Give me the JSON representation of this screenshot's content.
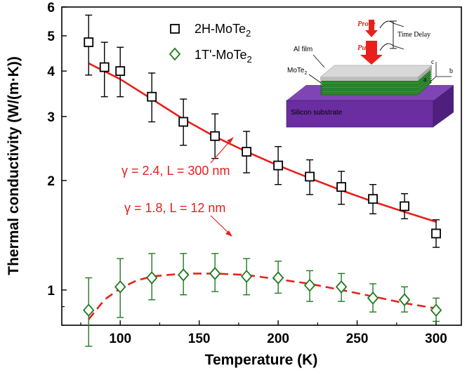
{
  "chart_data": {
    "type": "scatter",
    "xlabel": "Temperature (K)",
    "ylabel": "Thermal conductivity (W/(m·K))",
    "xlim": [
      63,
      316
    ],
    "ylim": [
      0.8,
      6
    ],
    "yscale": "log",
    "xticks": [
      100,
      150,
      200,
      250,
      300
    ],
    "xtick_labels": [
      "100",
      "150",
      "200",
      "250",
      "300"
    ],
    "yticks": [
      1,
      2,
      3,
      4,
      5,
      6
    ],
    "ytick_labels": [
      "1",
      "2",
      "3",
      "4",
      "5",
      "6"
    ],
    "series": [
      {
        "name": "2H-MoTe2",
        "label_main": "2H-MoTe",
        "label_sub": "2",
        "marker": "square",
        "color": "#000000",
        "x": [
          80,
          90,
          100,
          120,
          140,
          160,
          180,
          200,
          220,
          240,
          260,
          280,
          300
        ],
        "y": [
          4.8,
          4.1,
          4.0,
          3.4,
          2.9,
          2.65,
          2.4,
          2.2,
          2.05,
          1.92,
          1.78,
          1.7,
          1.43
        ],
        "yerr_low": [
          0.9,
          0.7,
          0.6,
          0.5,
          0.4,
          0.35,
          0.3,
          0.25,
          0.22,
          0.2,
          0.16,
          0.13,
          0.12
        ],
        "yerr_high": [
          0.9,
          0.7,
          0.65,
          0.55,
          0.45,
          0.4,
          0.33,
          0.28,
          0.23,
          0.2,
          0.17,
          0.14,
          0.13
        ]
      },
      {
        "name": "1T'-MoTe2",
        "label_main": "1T'-MoTe",
        "label_sub": "2",
        "marker": "diamond",
        "color": "#1e7a1e",
        "x": [
          80,
          100,
          120,
          140,
          160,
          180,
          200,
          220,
          240,
          260,
          280,
          300
        ],
        "y": [
          0.88,
          1.02,
          1.08,
          1.1,
          1.11,
          1.09,
          1.08,
          1.03,
          1.02,
          0.95,
          0.94,
          0.88
        ],
        "yerr_low": [
          0.18,
          0.18,
          0.14,
          0.13,
          0.12,
          0.12,
          0.1,
          0.1,
          0.09,
          0.08,
          0.07,
          0.06
        ],
        "yerr_high": [
          0.2,
          0.2,
          0.18,
          0.16,
          0.15,
          0.13,
          0.12,
          0.1,
          0.09,
          0.09,
          0.08,
          0.07
        ]
      }
    ],
    "fits": [
      {
        "name": "gamma-2.4-fit",
        "style": "solid",
        "color": "#e8201c",
        "x": [
          80,
          100,
          120,
          140,
          160,
          180,
          200,
          220,
          240,
          260,
          280,
          300
        ],
        "y": [
          4.2,
          3.8,
          3.35,
          2.95,
          2.64,
          2.4,
          2.2,
          2.03,
          1.88,
          1.75,
          1.64,
          1.54
        ]
      },
      {
        "name": "gamma-1.8-fit",
        "style": "dashed",
        "color": "#e8201c",
        "x": [
          80,
          90,
          100,
          110,
          120,
          140,
          160,
          180,
          200,
          220,
          240,
          260,
          280,
          300
        ],
        "y": [
          0.83,
          0.94,
          1.01,
          1.06,
          1.09,
          1.11,
          1.11,
          1.1,
          1.07,
          1.04,
          1.0,
          0.96,
          0.92,
          0.89
        ]
      }
    ],
    "annotations": [
      {
        "text": "γ = 2.4, L = 300 nm",
        "arrow_to": [
          190,
          2.3
        ]
      },
      {
        "text": "γ = 1.8, L = 12 nm",
        "arrow_to": [
          170,
          1.13
        ]
      }
    ],
    "legend_position": "top-left"
  },
  "inset": {
    "probe_label": "Probe",
    "pump_label": "Pump",
    "time_delay_label": "Time Delay",
    "al_film_label": "Al film",
    "mote2_label_main": "MoTe",
    "mote2_label_sub": "2",
    "substrate_label": "Silicon substrate",
    "axis_c": "c",
    "axis_b": "b",
    "axis_a": "a",
    "colors": {
      "substrate": "#6a2ea0",
      "layers": "#2f8a2f",
      "al": "#c8c8c8",
      "beam": "#e8201c"
    }
  }
}
